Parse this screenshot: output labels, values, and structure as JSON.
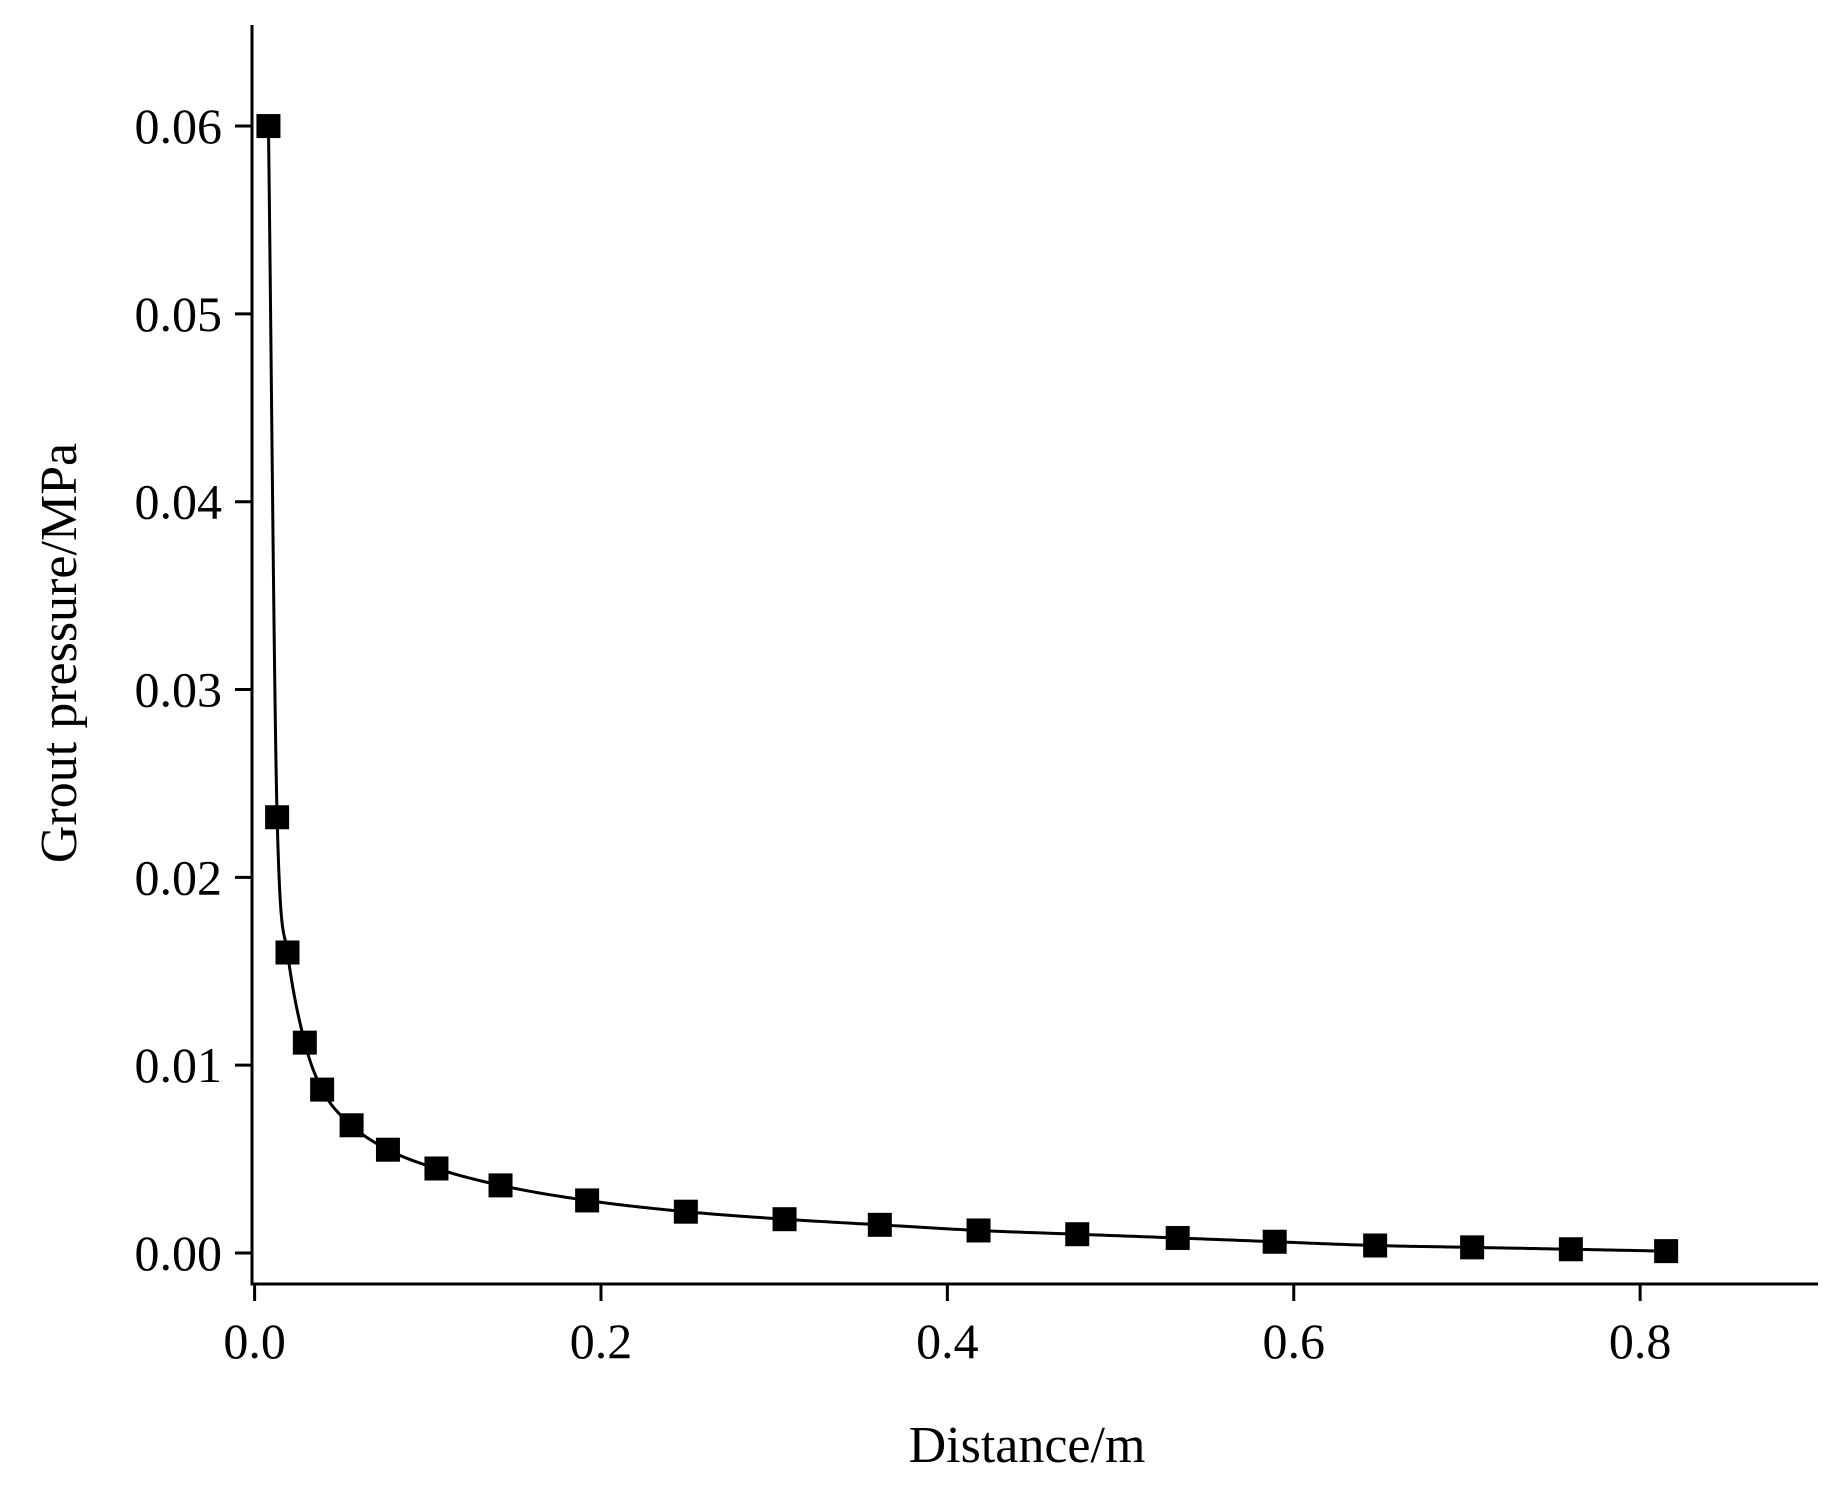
{
  "chart_data": {
    "type": "line",
    "title": "",
    "xlabel": "Distance/m",
    "ylabel": "Grout pressure/MPa",
    "xlim": [
      -0.0015,
      0.9027
    ],
    "ylim": [
      -0.00165,
      0.06538
    ],
    "grid": false,
    "legend": "none",
    "x_ticks": [
      "0.0",
      "0.2",
      "0.4",
      "0.6",
      "0.8"
    ],
    "y_ticks": [
      "0.00",
      "0.01",
      "0.02",
      "0.03",
      "0.04",
      "0.05",
      "0.06"
    ],
    "colors": {
      "line": "#000000",
      "marker": "#000000",
      "axis": "#000000"
    },
    "marker": "square",
    "series": [
      {
        "x": [
          0.008,
          0.013,
          0.019,
          0.029,
          0.039,
          0.056,
          0.077,
          0.105,
          0.142,
          0.192,
          0.249,
          0.306,
          0.361,
          0.418,
          0.475,
          0.533,
          0.589,
          0.647,
          0.703,
          0.76,
          0.815
        ],
        "y": [
          0.06,
          0.0232,
          0.016,
          0.0112,
          0.0087,
          0.0068,
          0.0055,
          0.0045,
          0.0036,
          0.0028,
          0.0022,
          0.0018,
          0.0015,
          0.0012,
          0.001,
          0.0008,
          0.0006,
          0.0004,
          0.0003,
          0.0002,
          0.0001
        ]
      }
    ]
  }
}
